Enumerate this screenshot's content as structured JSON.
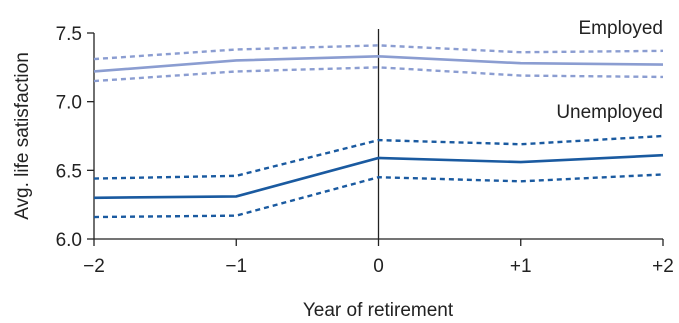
{
  "chart_data": {
    "type": "line",
    "title": "",
    "xlabel": "Year of retirement",
    "ylabel": "Avg. life satisfaction",
    "x": [
      -2,
      -1,
      0,
      1,
      2
    ],
    "x_tick_labels": [
      "−2",
      "−1",
      "0",
      "+1",
      "+2"
    ],
    "y_ticks": [
      6.0,
      6.5,
      7.0,
      7.5
    ],
    "y_tick_labels": [
      "6.0",
      "6.5",
      "7.0",
      "7.5"
    ],
    "xlim": [
      -2,
      2
    ],
    "ylim": [
      6.0,
      7.5
    ],
    "grid": false,
    "reference_line_x": 0,
    "series": [
      {
        "name": "Employed",
        "color": "#8b9dd1",
        "values": [
          7.22,
          7.3,
          7.33,
          7.28,
          7.27
        ],
        "ci_upper": [
          7.31,
          7.38,
          7.41,
          7.36,
          7.37
        ],
        "ci_lower": [
          7.15,
          7.22,
          7.25,
          7.19,
          7.18
        ]
      },
      {
        "name": "Unemployed",
        "color": "#1a5aa0",
        "values": [
          6.3,
          6.31,
          6.59,
          6.56,
          6.61
        ],
        "ci_upper": [
          6.44,
          6.46,
          6.72,
          6.69,
          6.75
        ],
        "ci_lower": [
          6.16,
          6.17,
          6.45,
          6.42,
          6.47
        ]
      }
    ]
  }
}
